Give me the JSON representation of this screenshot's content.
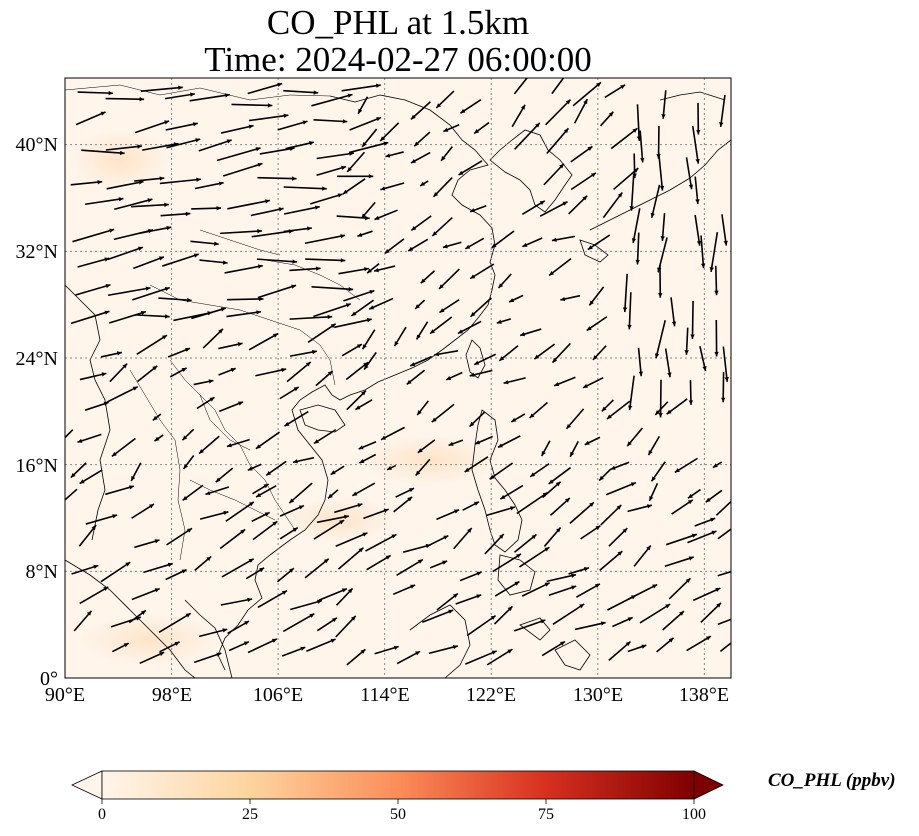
{
  "title": {
    "line1": "CO_PHL at 1.5km",
    "line2": "Time: 2024-02-27 06:00:00"
  },
  "map": {
    "lon_range": [
      90,
      140
    ],
    "lat_range": [
      0,
      45
    ],
    "lon_ticks": [
      "90°E",
      "98°E",
      "106°E",
      "114°E",
      "122°E",
      "130°E",
      "138°E"
    ],
    "lat_ticks": [
      "0°",
      "8°N",
      "16°N",
      "24°N",
      "32°N",
      "40°N"
    ],
    "background_color": "#fff5eb",
    "field_low_color": "#fff5eb",
    "field_plume_color": "#fde6cc",
    "wind_arrow_color": "#000000",
    "coastline_color": "#000000",
    "gridline_style": "dotted"
  },
  "colorbar": {
    "label": "CO_PHL (ppbv)",
    "min": 0,
    "max": 100,
    "ticks": [
      "0",
      "25",
      "50",
      "75",
      "100"
    ],
    "colormap_stops": [
      "#fff5eb",
      "#fdd49e",
      "#fc8d59",
      "#d7301f",
      "#7f0000"
    ],
    "extend": "both"
  }
}
